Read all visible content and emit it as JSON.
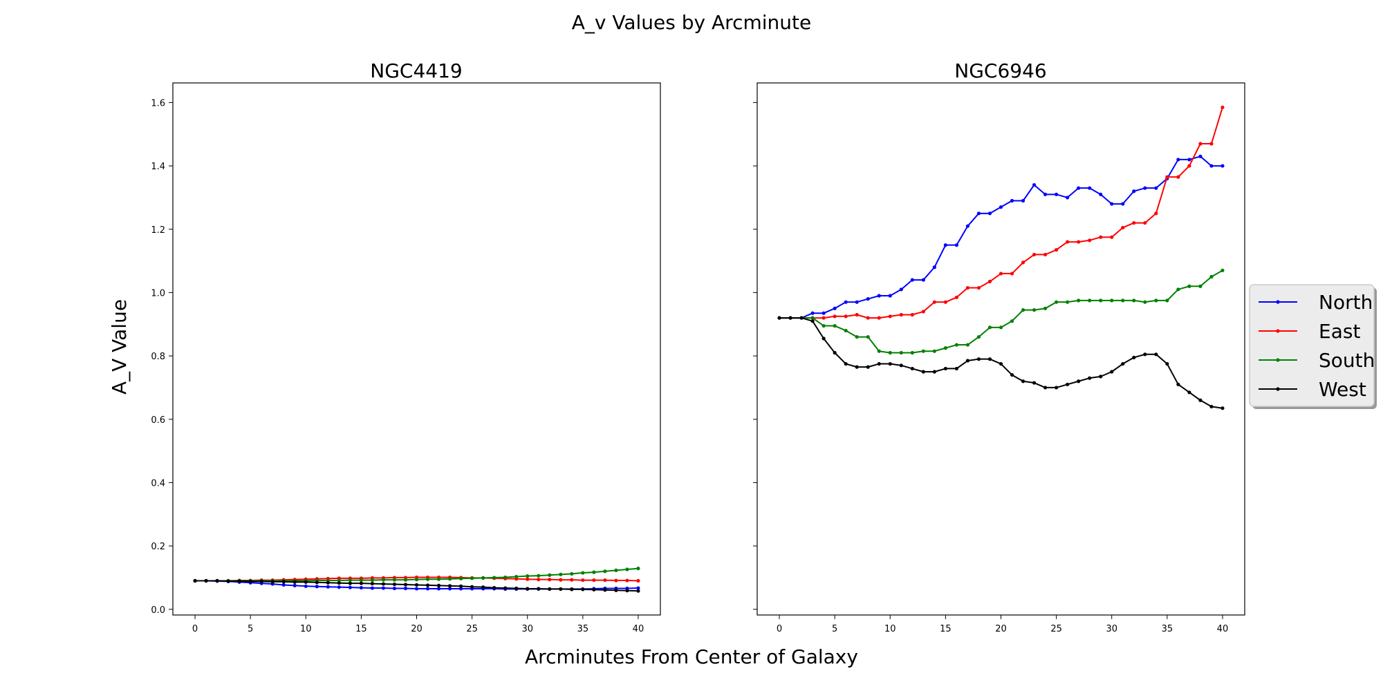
{
  "figure": {
    "suptitle": "A_v Values by Arcminute",
    "xlabel": "Arcminutes From Center of Galaxy",
    "ylabel": "A_V Value"
  },
  "legend": {
    "placement": "right-outside",
    "entries": [
      {
        "name": "North",
        "color": "#0000ff"
      },
      {
        "name": "East",
        "color": "#ff0000"
      },
      {
        "name": "South",
        "color": "#008000"
      },
      {
        "name": "West",
        "color": "#000000"
      }
    ]
  },
  "chart_data": [
    {
      "type": "line",
      "title": "NGC4419",
      "xlim": [
        -2,
        42
      ],
      "ylim": [
        -0.018,
        1.662
      ],
      "xticks": [
        0,
        5,
        10,
        15,
        20,
        25,
        30,
        35,
        40
      ],
      "yticks": [
        0.0,
        0.2,
        0.4,
        0.6,
        0.8,
        1.0,
        1.2,
        1.4,
        1.6
      ],
      "yticks_labeled": true,
      "x": [
        0,
        1,
        2,
        3,
        4,
        5,
        6,
        7,
        8,
        9,
        10,
        11,
        12,
        13,
        14,
        15,
        16,
        17,
        18,
        19,
        20,
        21,
        22,
        23,
        24,
        25,
        26,
        27,
        28,
        29,
        30,
        31,
        32,
        33,
        34,
        35,
        36,
        37,
        38,
        39,
        40
      ],
      "series": [
        {
          "name": "North",
          "color": "#0000ff",
          "values": [
            0.09,
            0.09,
            0.089,
            0.088,
            0.086,
            0.084,
            0.082,
            0.08,
            0.077,
            0.075,
            0.073,
            0.072,
            0.071,
            0.07,
            0.069,
            0.068,
            0.067,
            0.067,
            0.066,
            0.066,
            0.065,
            0.065,
            0.065,
            0.065,
            0.065,
            0.065,
            0.065,
            0.065,
            0.064,
            0.064,
            0.064,
            0.064,
            0.064,
            0.064,
            0.064,
            0.064,
            0.065,
            0.066,
            0.066,
            0.066,
            0.067
          ]
        },
        {
          "name": "East",
          "color": "#ff0000",
          "values": [
            0.09,
            0.09,
            0.09,
            0.09,
            0.091,
            0.091,
            0.092,
            0.092,
            0.093,
            0.094,
            0.095,
            0.096,
            0.097,
            0.098,
            0.098,
            0.098,
            0.099,
            0.099,
            0.1,
            0.1,
            0.101,
            0.101,
            0.101,
            0.101,
            0.1,
            0.099,
            0.099,
            0.098,
            0.097,
            0.096,
            0.095,
            0.094,
            0.094,
            0.093,
            0.093,
            0.092,
            0.092,
            0.092,
            0.091,
            0.091,
            0.09
          ]
        },
        {
          "name": "South",
          "color": "#008000",
          "values": [
            0.09,
            0.09,
            0.09,
            0.09,
            0.09,
            0.09,
            0.09,
            0.09,
            0.09,
            0.09,
            0.09,
            0.091,
            0.091,
            0.091,
            0.092,
            0.092,
            0.092,
            0.093,
            0.093,
            0.093,
            0.094,
            0.095,
            0.095,
            0.096,
            0.097,
            0.098,
            0.099,
            0.1,
            0.101,
            0.103,
            0.105,
            0.106,
            0.108,
            0.11,
            0.112,
            0.115,
            0.117,
            0.12,
            0.123,
            0.126,
            0.129
          ]
        },
        {
          "name": "West",
          "color": "#000000",
          "values": [
            0.09,
            0.09,
            0.09,
            0.089,
            0.089,
            0.088,
            0.088,
            0.087,
            0.087,
            0.086,
            0.086,
            0.085,
            0.084,
            0.083,
            0.082,
            0.082,
            0.081,
            0.08,
            0.079,
            0.078,
            0.077,
            0.076,
            0.075,
            0.074,
            0.073,
            0.071,
            0.07,
            0.068,
            0.067,
            0.066,
            0.065,
            0.065,
            0.064,
            0.064,
            0.063,
            0.063,
            0.062,
            0.061,
            0.06,
            0.059,
            0.058
          ]
        }
      ]
    },
    {
      "type": "line",
      "title": "NGC6946",
      "xlim": [
        -2,
        42
      ],
      "ylim": [
        -0.018,
        1.662
      ],
      "xticks": [
        0,
        5,
        10,
        15,
        20,
        25,
        30,
        35,
        40
      ],
      "yticks": [
        0.0,
        0.2,
        0.4,
        0.6,
        0.8,
        1.0,
        1.2,
        1.4,
        1.6
      ],
      "yticks_labeled": false,
      "x": [
        0,
        1,
        2,
        3,
        4,
        5,
        6,
        7,
        8,
        9,
        10,
        11,
        12,
        13,
        14,
        15,
        16,
        17,
        18,
        19,
        20,
        21,
        22,
        23,
        24,
        25,
        26,
        27,
        28,
        29,
        30,
        31,
        32,
        33,
        34,
        35,
        36,
        37,
        38,
        39,
        40
      ],
      "series": [
        {
          "name": "North",
          "color": "#0000ff",
          "values": [
            0.92,
            0.92,
            0.92,
            0.935,
            0.935,
            0.95,
            0.97,
            0.97,
            0.98,
            0.99,
            0.99,
            1.01,
            1.04,
            1.04,
            1.08,
            1.15,
            1.15,
            1.21,
            1.25,
            1.25,
            1.27,
            1.29,
            1.29,
            1.34,
            1.31,
            1.31,
            1.3,
            1.33,
            1.33,
            1.31,
            1.28,
            1.28,
            1.32,
            1.33,
            1.33,
            1.36,
            1.42,
            1.42,
            1.43,
            1.4,
            1.4
          ]
        },
        {
          "name": "East",
          "color": "#ff0000",
          "values": [
            0.92,
            0.92,
            0.92,
            0.92,
            0.92,
            0.925,
            0.925,
            0.93,
            0.92,
            0.92,
            0.925,
            0.93,
            0.93,
            0.94,
            0.97,
            0.97,
            0.985,
            1.015,
            1.015,
            1.035,
            1.06,
            1.06,
            1.095,
            1.12,
            1.12,
            1.135,
            1.16,
            1.16,
            1.165,
            1.175,
            1.175,
            1.205,
            1.22,
            1.22,
            1.25,
            1.365,
            1.365,
            1.4,
            1.47,
            1.47,
            1.585
          ]
        },
        {
          "name": "South",
          "color": "#008000",
          "values": [
            0.92,
            0.92,
            0.92,
            0.92,
            0.895,
            0.895,
            0.88,
            0.86,
            0.86,
            0.815,
            0.81,
            0.81,
            0.81,
            0.815,
            0.815,
            0.825,
            0.835,
            0.835,
            0.86,
            0.89,
            0.89,
            0.91,
            0.945,
            0.945,
            0.95,
            0.97,
            0.97,
            0.975,
            0.975,
            0.975,
            0.975,
            0.975,
            0.975,
            0.97,
            0.975,
            0.975,
            1.01,
            1.02,
            1.02,
            1.05,
            1.07
          ]
        },
        {
          "name": "West",
          "color": "#000000",
          "values": [
            0.92,
            0.92,
            0.92,
            0.91,
            0.855,
            0.81,
            0.775,
            0.765,
            0.765,
            0.775,
            0.775,
            0.77,
            0.76,
            0.75,
            0.75,
            0.76,
            0.76,
            0.785,
            0.79,
            0.79,
            0.775,
            0.74,
            0.72,
            0.715,
            0.7,
            0.7,
            0.71,
            0.72,
            0.73,
            0.735,
            0.75,
            0.775,
            0.795,
            0.805,
            0.805,
            0.775,
            0.71,
            0.685,
            0.66,
            0.64,
            0.635
          ]
        }
      ]
    }
  ]
}
